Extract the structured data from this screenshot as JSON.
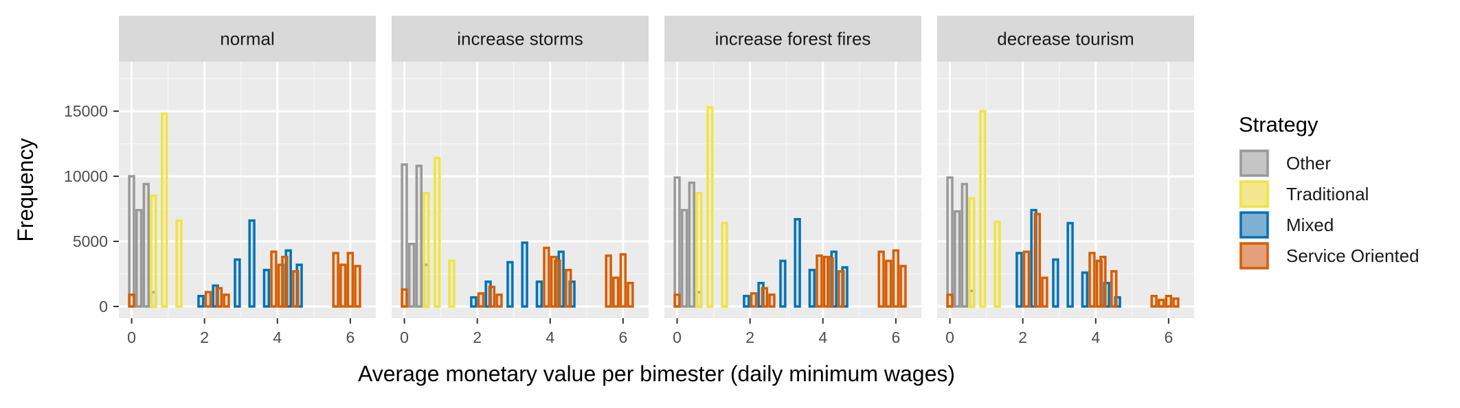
{
  "chart_data": {
    "type": "bar",
    "xlabel": "Average monetary value per bimester (daily minimum wages)",
    "ylabel": "Frequency",
    "x_ticks": [
      0,
      2,
      4,
      6
    ],
    "y_ticks": [
      0,
      5000,
      10000,
      15000
    ],
    "y_tick_labels": [
      "0",
      "5000",
      "10000",
      "15000"
    ],
    "xlim": [
      -0.35,
      6.7
    ],
    "ylim": [
      -900,
      18800
    ],
    "legend": {
      "title": "Strategy",
      "position": "right",
      "entries": [
        {
          "name": "Other",
          "color": "#999999",
          "fill": "#c5c5c5"
        },
        {
          "name": "Traditional",
          "color": "#f0e442",
          "fill": "#f2e88e"
        },
        {
          "name": "Mixed",
          "color": "#0072b2",
          "fill": "#7fb0d3"
        },
        {
          "name": "Service Oriented",
          "color": "#d55e00",
          "fill": "#e3a07b"
        }
      ]
    },
    "facets": [
      {
        "label": "normal",
        "series": [
          {
            "name": "Other",
            "x": [
              0,
              0.2,
              0.4,
              0.6
            ],
            "values": [
              10000,
              7400,
              9400,
              1100
            ]
          },
          {
            "name": "Traditional",
            "x": [
              0.6,
              0.9,
              1.3
            ],
            "values": [
              8500,
              14800,
              6600
            ]
          },
          {
            "name": "Mixed",
            "x": [
              1.9,
              2.3,
              2.9,
              3.3,
              3.7,
              4.3,
              4.6
            ],
            "values": [
              800,
              1600,
              3600,
              6600,
              2800,
              4300,
              3200
            ]
          },
          {
            "name": "Service Oriented",
            "x": [
              0,
              2.1,
              2.4,
              2.6,
              3.9,
              4.1,
              4.2,
              4.5,
              5.6,
              5.8,
              6.0,
              6.2
            ],
            "values": [
              900,
              1100,
              1400,
              900,
              4200,
              3200,
              3800,
              2700,
              4100,
              3200,
              4100,
              3100
            ]
          }
        ]
      },
      {
        "label": "increase storms",
        "series": [
          {
            "name": "Other",
            "x": [
              0,
              0.2,
              0.4,
              0.6
            ],
            "values": [
              10900,
              4800,
              10800,
              3200
            ]
          },
          {
            "name": "Traditional",
            "x": [
              0.6,
              0.9,
              1.3
            ],
            "values": [
              8700,
              11400,
              3500
            ]
          },
          {
            "name": "Mixed",
            "x": [
              1.9,
              2.3,
              2.9,
              3.3,
              3.7,
              4.3,
              4.6
            ],
            "values": [
              700,
              1900,
              3400,
              4900,
              1900,
              4200,
              1900
            ]
          },
          {
            "name": "Service Oriented",
            "x": [
              0,
              2.1,
              2.4,
              2.6,
              3.9,
              4.1,
              4.2,
              4.5,
              5.6,
              5.8,
              6.0,
              6.2
            ],
            "values": [
              1300,
              1000,
              1500,
              900,
              4500,
              3800,
              3500,
              2800,
              3900,
              2200,
              4000,
              1800
            ]
          }
        ]
      },
      {
        "label": "increase forest fires",
        "series": [
          {
            "name": "Other",
            "x": [
              0,
              0.2,
              0.4,
              0.6
            ],
            "values": [
              9900,
              7400,
              9500,
              1100
            ]
          },
          {
            "name": "Traditional",
            "x": [
              0.6,
              0.9,
              1.3
            ],
            "values": [
              8700,
              15300,
              6400
            ]
          },
          {
            "name": "Mixed",
            "x": [
              1.9,
              2.3,
              2.9,
              3.3,
              3.7,
              4.3,
              4.6
            ],
            "values": [
              800,
              1800,
              3500,
              6700,
              2800,
              4200,
              3000
            ]
          },
          {
            "name": "Service Oriented",
            "x": [
              0,
              2.1,
              2.4,
              2.6,
              3.9,
              4.1,
              4.2,
              4.5,
              5.6,
              5.8,
              6.0,
              6.2
            ],
            "values": [
              900,
              1000,
              1400,
              900,
              3900,
              3800,
              3700,
              2700,
              4200,
              3500,
              4300,
              3100
            ]
          }
        ]
      },
      {
        "label": "decrease tourism",
        "series": [
          {
            "name": "Other",
            "x": [
              0,
              0.2,
              0.4,
              0.6
            ],
            "values": [
              9900,
              7300,
              9400,
              1200
            ]
          },
          {
            "name": "Traditional",
            "x": [
              0.6,
              0.9,
              1.3
            ],
            "values": [
              8300,
              15000,
              6500
            ]
          },
          {
            "name": "Mixed",
            "x": [
              1.9,
              2.3,
              2.9,
              3.3,
              3.7,
              4.3,
              4.6
            ],
            "values": [
              4100,
              7400,
              3600,
              6400,
              2600,
              1800,
              700
            ]
          },
          {
            "name": "Service Oriented",
            "x": [
              0,
              2.1,
              2.4,
              2.6,
              3.9,
              4.1,
              4.2,
              4.5,
              5.6,
              5.8,
              6.0,
              6.2
            ],
            "values": [
              900,
              4200,
              7100,
              2200,
              4100,
              3500,
              3800,
              2700,
              800,
              500,
              800,
              600
            ]
          }
        ]
      }
    ]
  }
}
